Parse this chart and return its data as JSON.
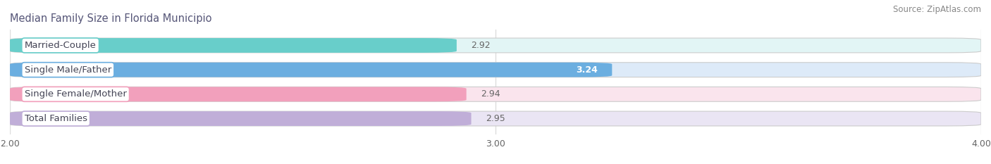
{
  "title": "Median Family Size in Florida Municipio",
  "source": "Source: ZipAtlas.com",
  "categories": [
    "Married-Couple",
    "Single Male/Father",
    "Single Female/Mother",
    "Total Families"
  ],
  "values": [
    2.92,
    3.24,
    2.94,
    2.95
  ],
  "bar_colors": [
    "#68ceca",
    "#6baee0",
    "#f2a0bc",
    "#c0aed8"
  ],
  "bar_bg_colors": [
    "#e2f5f5",
    "#ddeaf8",
    "#fae4ed",
    "#eae5f4"
  ],
  "label_border_colors": [
    "#68ceca",
    "#6baee0",
    "#f2a0bc",
    "#c0aed8"
  ],
  "xlim": [
    2.0,
    4.0
  ],
  "xticks": [
    2.0,
    3.0,
    4.0
  ],
  "xtick_labels": [
    "2.00",
    "3.00",
    "4.00"
  ],
  "bar_height": 0.6,
  "figsize": [
    14.06,
    2.33
  ],
  "dpi": 100,
  "title_fontsize": 10.5,
  "label_fontsize": 9.5,
  "value_fontsize": 9,
  "tick_fontsize": 9,
  "source_fontsize": 8.5,
  "value_inside_color": "#ffffff",
  "value_outside_color": "#666666",
  "title_color": "#555577",
  "source_color": "#888888",
  "bg_color": "#ffffff",
  "grid_color": "#dddddd"
}
